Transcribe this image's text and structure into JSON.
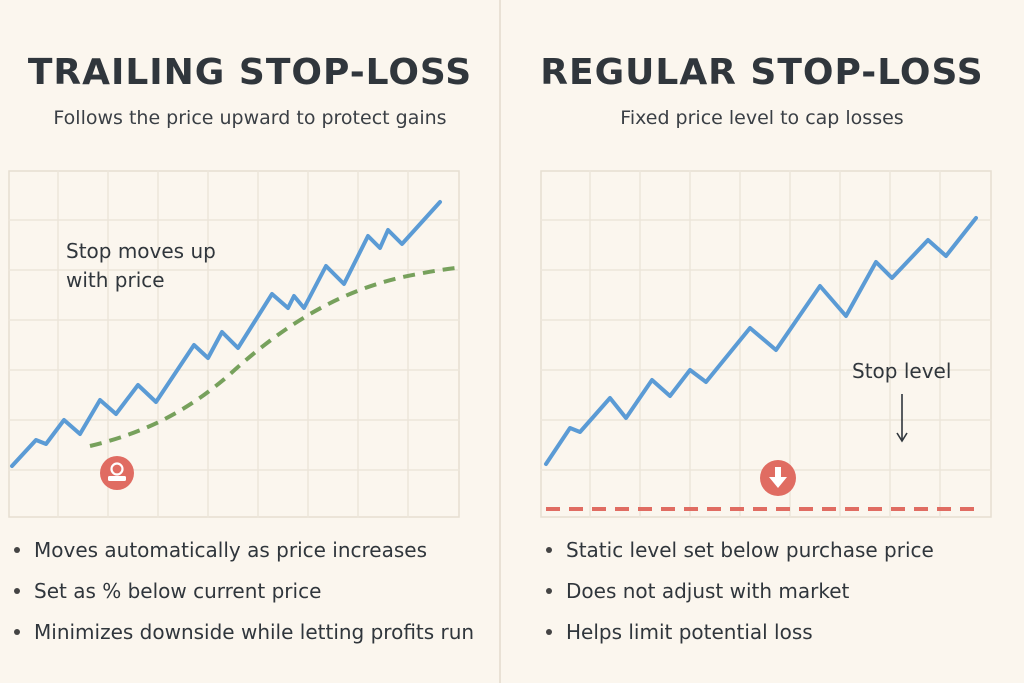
{
  "colors": {
    "background": "#fbf6ee",
    "price_line": "#5b9bd5",
    "trailing_stop": "#77a15c",
    "regular_stop": "#e06c62",
    "grid": "#ece5da"
  },
  "left": {
    "title": "TRAILING STOP-LOSS",
    "subtitle": "Follows the price upward to protect gains",
    "annotation_line1": "Stop moves up",
    "annotation_line2": "with price",
    "marker_icon": "stop-badge-icon",
    "bullets": [
      "Moves automatically as price increases",
      "Set as % below current price",
      "Minimizes downside while letting profits run"
    ]
  },
  "right": {
    "title": "REGULAR STOP-LOSS",
    "subtitle": "Fixed price level to cap losses",
    "annotation": "Stop level",
    "marker_icon": "arrow-down-icon",
    "bullets": [
      "Static level set below purchase price",
      "Does not adjust with market",
      "Helps limit potential loss"
    ]
  }
}
